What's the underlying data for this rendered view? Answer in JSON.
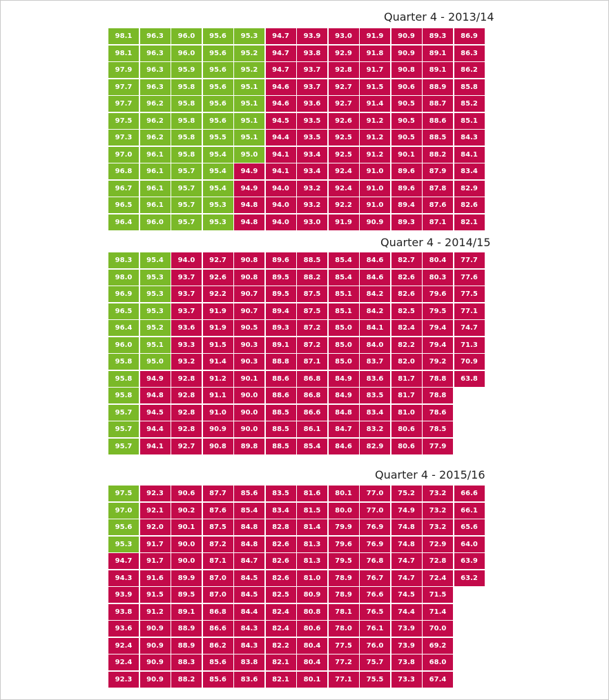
{
  "colors": {
    "green": "#7ab928",
    "red": "#c30a4a"
  },
  "legend_threshold_note": "",
  "chart_data": [
    {
      "type": "table",
      "title": "Quarter 4 - 2013/14",
      "green_threshold": 95,
      "rows": [
        [
          "98.1",
          "96.3",
          "96.0",
          "95.6",
          "95.3",
          "94.7",
          "93.9",
          "93.0",
          "91.9",
          "90.9",
          "89.3",
          "86.9"
        ],
        [
          "98.1",
          "96.3",
          "96.0",
          "95.6",
          "95.2",
          "94.7",
          "93.8",
          "92.9",
          "91.8",
          "90.9",
          "89.1",
          "86.3"
        ],
        [
          "97.9",
          "96.3",
          "95.9",
          "95.6",
          "95.2",
          "94.7",
          "93.7",
          "92.8",
          "91.7",
          "90.8",
          "89.1",
          "86.2"
        ],
        [
          "97.7",
          "96.3",
          "95.8",
          "95.6",
          "95.1",
          "94.6",
          "93.7",
          "92.7",
          "91.5",
          "90.6",
          "88.9",
          "85.8"
        ],
        [
          "97.7",
          "96.2",
          "95.8",
          "95.6",
          "95.1",
          "94.6",
          "93.6",
          "92.7",
          "91.4",
          "90.5",
          "88.7",
          "85.2"
        ],
        [
          "97.5",
          "96.2",
          "95.8",
          "95.6",
          "95.1",
          "94.5",
          "93.5",
          "92.6",
          "91.2",
          "90.5",
          "88.6",
          "85.1"
        ],
        [
          "97.3",
          "96.2",
          "95.8",
          "95.5",
          "95.1",
          "94.4",
          "93.5",
          "92.5",
          "91.2",
          "90.5",
          "88.5",
          "84.3"
        ],
        [
          "97.0",
          "96.1",
          "95.8",
          "95.4",
          "95.0",
          "94.1",
          "93.4",
          "92.5",
          "91.2",
          "90.1",
          "88.2",
          "84.1"
        ],
        [
          "96.8",
          "96.1",
          "95.7",
          "95.4",
          "94.9",
          "94.1",
          "93.4",
          "92.4",
          "91.0",
          "89.6",
          "87.9",
          "83.4"
        ],
        [
          "96.7",
          "96.1",
          "95.7",
          "95.4",
          "94.9",
          "94.0",
          "93.2",
          "92.4",
          "91.0",
          "89.6",
          "87.8",
          "82.9"
        ],
        [
          "96.5",
          "96.1",
          "95.7",
          "95.3",
          "94.8",
          "94.0",
          "93.2",
          "92.2",
          "91.0",
          "89.4",
          "87.6",
          "82.6"
        ],
        [
          "96.4",
          "96.0",
          "95.7",
          "95.3",
          "94.8",
          "94.0",
          "93.0",
          "91.9",
          "90.9",
          "89.3",
          "87.1",
          "82.1"
        ]
      ]
    },
    {
      "type": "table",
      "title": "Quarter 4 - 2014/15",
      "green_threshold": 95,
      "rows": [
        [
          "98.3",
          "95.4",
          "94.0",
          "92.7",
          "90.8",
          "89.6",
          "88.5",
          "85.4",
          "84.6",
          "82.7",
          "80.4",
          "77.7"
        ],
        [
          "98.0",
          "95.3",
          "93.7",
          "92.6",
          "90.8",
          "89.5",
          "88.2",
          "85.4",
          "84.6",
          "82.6",
          "80.3",
          "77.6"
        ],
        [
          "96.9",
          "95.3",
          "93.7",
          "92.2",
          "90.7",
          "89.5",
          "87.5",
          "85.1",
          "84.2",
          "82.6",
          "79.6",
          "77.5"
        ],
        [
          "96.5",
          "95.3",
          "93.7",
          "91.9",
          "90.7",
          "89.4",
          "87.5",
          "85.1",
          "84.2",
          "82.5",
          "79.5",
          "77.1"
        ],
        [
          "96.4",
          "95.2",
          "93.6",
          "91.9",
          "90.5",
          "89.3",
          "87.2",
          "85.0",
          "84.1",
          "82.4",
          "79.4",
          "74.7"
        ],
        [
          "96.0",
          "95.1",
          "93.3",
          "91.5",
          "90.3",
          "89.1",
          "87.2",
          "85.0",
          "84.0",
          "82.2",
          "79.4",
          "71.3"
        ],
        [
          "95.8",
          "95.0",
          "93.2",
          "91.4",
          "90.3",
          "88.8",
          "87.1",
          "85.0",
          "83.7",
          "82.0",
          "79.2",
          "70.9"
        ],
        [
          "95.8",
          "94.9",
          "92.8",
          "91.2",
          "90.1",
          "88.6",
          "86.8",
          "84.9",
          "83.6",
          "81.7",
          "78.8",
          "63.8"
        ],
        [
          "95.8",
          "94.8",
          "92.8",
          "91.1",
          "90.0",
          "88.6",
          "86.8",
          "84.9",
          "83.5",
          "81.7",
          "78.8"
        ],
        [
          "95.7",
          "94.5",
          "92.8",
          "91.0",
          "90.0",
          "88.5",
          "86.6",
          "84.8",
          "83.4",
          "81.0",
          "78.6"
        ],
        [
          "95.7",
          "94.4",
          "92.8",
          "90.9",
          "90.0",
          "88.5",
          "86.1",
          "84.7",
          "83.2",
          "80.6",
          "78.5"
        ],
        [
          "95.7",
          "94.1",
          "92.7",
          "90.8",
          "89.8",
          "88.5",
          "85.4",
          "84.6",
          "82.9",
          "80.6",
          "77.9"
        ]
      ]
    },
    {
      "type": "table",
      "title": "Quarter 4 - 2015/16",
      "green_threshold": 95,
      "rows": [
        [
          "97.5",
          "92.3",
          "90.6",
          "87.7",
          "85.6",
          "83.5",
          "81.6",
          "80.1",
          "77.0",
          "75.2",
          "73.2",
          "66.6"
        ],
        [
          "97.0",
          "92.1",
          "90.2",
          "87.6",
          "85.4",
          "83.4",
          "81.5",
          "80.0",
          "77.0",
          "74.9",
          "73.2",
          "66.1"
        ],
        [
          "95.6",
          "92.0",
          "90.1",
          "87.5",
          "84.8",
          "82.8",
          "81.4",
          "79.9",
          "76.9",
          "74.8",
          "73.2",
          "65.6"
        ],
        [
          "95.3",
          "91.7",
          "90.0",
          "87.2",
          "84.8",
          "82.6",
          "81.3",
          "79.6",
          "76.9",
          "74.8",
          "72.9",
          "64.0"
        ],
        [
          "94.7",
          "91.7",
          "90.0",
          "87.1",
          "84.7",
          "82.6",
          "81.3",
          "79.5",
          "76.8",
          "74.7",
          "72.8",
          "63.9"
        ],
        [
          "94.3",
          "91.6",
          "89.9",
          "87.0",
          "84.5",
          "82.6",
          "81.0",
          "78.9",
          "76.7",
          "74.7",
          "72.4",
          "63.2"
        ],
        [
          "93.9",
          "91.5",
          "89.5",
          "87.0",
          "84.5",
          "82.5",
          "80.9",
          "78.9",
          "76.6",
          "74.5",
          "71.5"
        ],
        [
          "93.8",
          "91.2",
          "89.1",
          "86.8",
          "84.4",
          "82.4",
          "80.8",
          "78.1",
          "76.5",
          "74.4",
          "71.4"
        ],
        [
          "93.6",
          "90.9",
          "88.9",
          "86.6",
          "84.3",
          "82.4",
          "80.6",
          "78.0",
          "76.1",
          "73.9",
          "70.0"
        ],
        [
          "92.4",
          "90.9",
          "88.9",
          "86.2",
          "84.3",
          "82.2",
          "80.4",
          "77.5",
          "76.0",
          "73.9",
          "69.2"
        ],
        [
          "92.4",
          "90.9",
          "88.3",
          "85.6",
          "83.8",
          "82.1",
          "80.4",
          "77.2",
          "75.7",
          "73.8",
          "68.0"
        ],
        [
          "92.3",
          "90.9",
          "88.2",
          "85.6",
          "83.6",
          "82.1",
          "80.1",
          "77.1",
          "75.5",
          "73.3",
          "67.4"
        ]
      ]
    }
  ]
}
